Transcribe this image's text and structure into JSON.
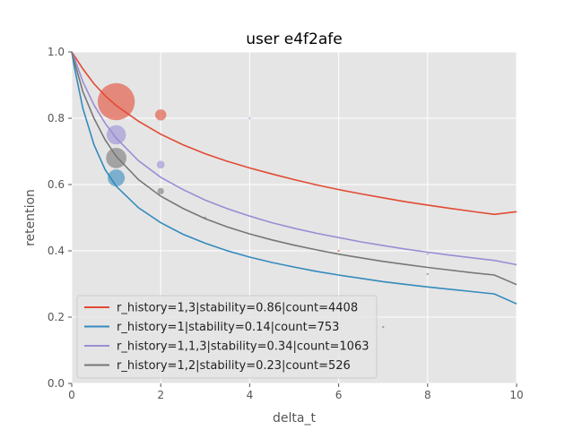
{
  "chart_data": {
    "type": "line",
    "title": "user e4f2afe",
    "xlabel": "delta_t",
    "ylabel": "retention",
    "xlim": [
      0,
      10
    ],
    "ylim": [
      0.0,
      1.0
    ],
    "xticks": [
      0,
      2,
      4,
      6,
      8,
      10
    ],
    "yticks": [
      0.0,
      0.2,
      0.4,
      0.6,
      0.8,
      1.0
    ],
    "grid": true,
    "legend_position": "lower-left",
    "series": [
      {
        "name": "r_history=1,3|stability=0.86|count=4408",
        "color": "#E24A33",
        "x": [
          0.05,
          0.25,
          0.5,
          0.75,
          1,
          1.5,
          2,
          2.5,
          3,
          3.5,
          4,
          4.5,
          5,
          5.5,
          6,
          6.5,
          7,
          7.5,
          8,
          8.5,
          9,
          9.5,
          10
        ],
        "y": [
          0.99,
          0.949,
          0.904,
          0.868,
          0.838,
          0.791,
          0.752,
          0.72,
          0.693,
          0.67,
          0.65,
          0.632,
          0.615,
          0.599,
          0.585,
          0.572,
          0.56,
          0.548,
          0.538,
          0.528,
          0.519,
          0.51,
          0.518
        ],
        "points": [
          {
            "x": 1,
            "y": 0.85,
            "count": 3300
          },
          {
            "x": 2,
            "y": 0.81,
            "count": 300
          },
          {
            "x": 6,
            "y": 0.4,
            "count": 5
          }
        ]
      },
      {
        "name": "r_history=1|stability=0.14|count=753",
        "color": "#348ABD",
        "x": [
          0.05,
          0.25,
          0.5,
          0.75,
          1,
          1.5,
          2,
          2.5,
          3,
          3.5,
          4,
          4.5,
          5,
          5.5,
          6,
          6.5,
          7,
          7.5,
          8,
          8.5,
          9,
          9.5,
          10
        ],
        "y": [
          0.96,
          0.83,
          0.72,
          0.645,
          0.595,
          0.53,
          0.485,
          0.45,
          0.423,
          0.4,
          0.381,
          0.365,
          0.351,
          0.338,
          0.327,
          0.317,
          0.307,
          0.299,
          0.291,
          0.284,
          0.277,
          0.27,
          0.24
        ],
        "points": [
          {
            "x": 1,
            "y": 0.62,
            "count": 700
          }
        ]
      },
      {
        "name": "r_history=1,1,3|stability=0.34|count=1063",
        "color": "#988ED5",
        "x": [
          0.05,
          0.25,
          0.5,
          0.75,
          1,
          1.5,
          2,
          2.5,
          3,
          3.5,
          4,
          4.5,
          5,
          5.5,
          6,
          6.5,
          7,
          7.5,
          8,
          8.5,
          9,
          9.5,
          10
        ],
        "y": [
          0.985,
          0.91,
          0.84,
          0.785,
          0.74,
          0.672,
          0.622,
          0.585,
          0.553,
          0.527,
          0.505,
          0.485,
          0.468,
          0.453,
          0.44,
          0.427,
          0.416,
          0.405,
          0.396,
          0.387,
          0.379,
          0.371,
          0.358
        ],
        "points": [
          {
            "x": 1,
            "y": 0.75,
            "count": 900
          },
          {
            "x": 2,
            "y": 0.66,
            "count": 150
          },
          {
            "x": 4,
            "y": 0.8,
            "count": 8
          },
          {
            "x": 8,
            "y": 0.39,
            "count": 4
          }
        ]
      },
      {
        "name": "r_history=1,2|stability=0.23|count=526",
        "color": "#777777",
        "x": [
          0.05,
          0.25,
          0.5,
          0.75,
          1,
          1.5,
          2,
          2.5,
          3,
          3.5,
          4,
          4.5,
          5,
          5.5,
          6,
          6.5,
          7,
          7.5,
          8,
          8.5,
          9,
          9.5,
          10
        ],
        "y": [
          0.975,
          0.88,
          0.8,
          0.735,
          0.685,
          0.615,
          0.565,
          0.528,
          0.497,
          0.472,
          0.451,
          0.433,
          0.417,
          0.403,
          0.39,
          0.379,
          0.368,
          0.359,
          0.35,
          0.342,
          0.334,
          0.327,
          0.298
        ],
        "points": [
          {
            "x": 1,
            "y": 0.68,
            "count": 1000
          },
          {
            "x": 2,
            "y": 0.58,
            "count": 100
          },
          {
            "x": 3,
            "y": 0.5,
            "count": 6
          },
          {
            "x": 8,
            "y": 0.33,
            "count": 4
          },
          {
            "x": 7,
            "y": 0.17,
            "count": 3
          }
        ]
      }
    ]
  }
}
